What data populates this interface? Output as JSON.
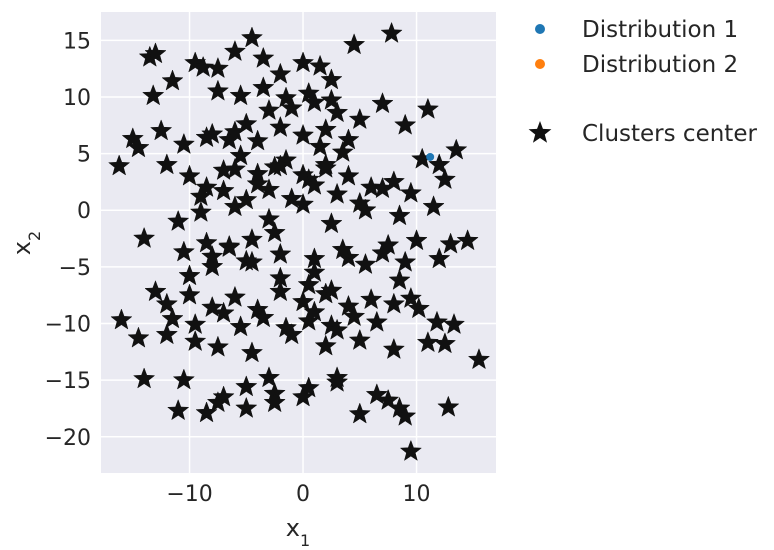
{
  "chart_data": {
    "type": "scatter",
    "title": "",
    "xlabel_base": "x",
    "xlabel_sub": "1",
    "ylabel_base": "x",
    "ylabel_sub": "2",
    "xlim": [
      -17.8,
      17.0
    ],
    "ylim": [
      -23.2,
      17.5
    ],
    "xticks": [
      -10,
      0,
      10
    ],
    "xtick_labels": [
      "−10",
      "0",
      "10"
    ],
    "yticks": [
      15,
      10,
      5,
      0,
      -5,
      -10,
      -15,
      -20
    ],
    "ytick_labels": [
      "15",
      "10",
      "5",
      "0",
      "−5",
      "−10",
      "−15",
      "−20"
    ],
    "grid": true,
    "legend_position": "outside-top-right",
    "colors": {
      "background": "#eaeaf2",
      "grid": "#ffffff",
      "distribution_1": "#1f77b4",
      "distribution_2": "#ff7f0e",
      "clusters_center": "#111111"
    },
    "series": [
      {
        "name": "Distribution 1",
        "marker": "circle",
        "x": [
          11.2
        ],
        "y": [
          4.7
        ]
      },
      {
        "name": "Distribution 2",
        "marker": "circle",
        "x": [],
        "y": []
      },
      {
        "name": "Clusters center",
        "marker": "star",
        "x": [
          -16.2,
          -13.5,
          -13.0,
          -13.2,
          -11.5,
          -9.5,
          -8.8,
          -7.5,
          -6.0,
          -4.5,
          -3.5,
          -2.0,
          0.0,
          1.5,
          2.5,
          4.5,
          7.8,
          11.0,
          13.5,
          12.0,
          -15.0,
          -14.5,
          -12.5,
          -10.5,
          -8.0,
          -6.5,
          -5.0,
          -3.0,
          -1.0,
          1.0,
          3.0,
          5.0,
          7.0,
          9.0,
          10.5,
          12.5,
          -12.0,
          -10.0,
          -8.5,
          -7.0,
          -5.5,
          -4.0,
          -2.5,
          -1.5,
          0.5,
          2.0,
          3.5,
          4.0,
          6.0,
          8.0,
          9.5,
          11.5,
          -14.0,
          -11.0,
          -9.0,
          -6.0,
          -3.0,
          0.0,
          2.5,
          5.5,
          8.5,
          10.0,
          13.0,
          14.5,
          -16.0,
          -13.0,
          -10.0,
          -8.0,
          -5.0,
          -2.0,
          1.0,
          4.0,
          7.0,
          9.0,
          12.0,
          15.5,
          -14.5,
          -12.0,
          -9.5,
          -7.5,
          -4.5,
          -1.0,
          2.0,
          5.0,
          8.0,
          11.0,
          12.5,
          -14.0,
          -10.5,
          -8.5,
          -7.0,
          -5.0,
          -2.5,
          0.5,
          3.0,
          6.5,
          8.5,
          9.0,
          12.8,
          -11.0,
          -7.5,
          -5.0,
          -2.5,
          0.0,
          3.0,
          5.0,
          7.5,
          9.5,
          -3.0,
          -12.0,
          -10.0,
          -8.0,
          -6.0,
          -4.0,
          -2.0,
          0.0,
          2.0,
          4.0,
          6.0,
          8.0,
          -11.5,
          -9.5,
          -7.0,
          -5.5,
          -3.5,
          -1.5,
          0.5,
          2.5,
          4.5,
          6.5,
          -10.5,
          -8.0,
          -6.5,
          -4.5,
          -2.0,
          1.0,
          3.5,
          5.5,
          7.5,
          -9.0,
          -7.0,
          -5.0,
          -3.0,
          -1.0,
          1.0,
          3.0,
          5.0,
          7.0,
          -8.5,
          -6.0,
          -4.0,
          -2.0,
          0.0,
          2.0,
          4.0,
          -7.5,
          -5.5,
          -3.5,
          -1.5,
          0.5,
          2.5,
          -6.0,
          -4.0,
          -2.0,
          0.0,
          2.0,
          1.5,
          0.5,
          2.5,
          1.0,
          3.0,
          -2.5,
          -4.5,
          -6.5,
          -8.5,
          8.5,
          9.5,
          10.2,
          11.8,
          13.3
        ],
        "y": [
          3.9,
          13.5,
          13.8,
          10.1,
          11.4,
          13.0,
          12.6,
          12.5,
          14.0,
          15.2,
          13.4,
          12.0,
          13.0,
          12.7,
          11.5,
          14.6,
          15.6,
          8.9,
          5.3,
          4.0,
          6.3,
          5.5,
          7.0,
          5.8,
          6.7,
          6.2,
          7.6,
          8.8,
          9.0,
          9.5,
          8.6,
          8.0,
          9.4,
          7.5,
          4.5,
          2.7,
          4.0,
          3.0,
          2.0,
          3.5,
          4.8,
          2.3,
          3.8,
          4.4,
          2.7,
          4.0,
          5.1,
          3.0,
          2.0,
          2.5,
          1.5,
          0.3,
          -2.5,
          -1.0,
          -0.2,
          0.3,
          -0.8,
          0.5,
          -1.2,
          0.0,
          -0.5,
          -2.7,
          -3.0,
          -2.7,
          -9.7,
          -7.2,
          -5.8,
          -5.0,
          -4.5,
          -6.0,
          -5.5,
          -4.2,
          -3.8,
          -4.6,
          -4.3,
          -13.2,
          -11.3,
          -11.0,
          -11.6,
          -12.1,
          -12.6,
          -11.0,
          -12.0,
          -11.5,
          -12.3,
          -11.7,
          -11.8,
          -14.9,
          -15.0,
          -17.9,
          -16.5,
          -15.6,
          -16.2,
          -15.7,
          -14.8,
          -16.3,
          -17.5,
          -18.2,
          -17.4,
          -17.7,
          -17.0,
          -17.5,
          -17.0,
          -16.5,
          -15.2,
          -18.0,
          -16.8,
          -21.3,
          -14.8,
          -8.3,
          -7.5,
          -8.6,
          -7.7,
          -8.8,
          -7.2,
          -8.1,
          -7.4,
          -8.5,
          -7.9,
          -8.3,
          -9.6,
          -10.1,
          -9.1,
          -10.3,
          -9.5,
          -10.4,
          -9.8,
          -10.2,
          -9.4,
          -9.9,
          -3.7,
          -4.1,
          -3.2,
          -4.6,
          -3.9,
          -4.3,
          -3.5,
          -4.8,
          -3.1,
          1.2,
          1.7,
          0.9,
          1.8,
          1.0,
          2.2,
          1.4,
          0.6,
          1.9,
          6.4,
          6.9,
          6.1,
          7.3,
          6.6,
          7.1,
          6.2,
          10.5,
          10.1,
          10.8,
          9.9,
          10.3,
          9.7,
          3.6,
          3.2,
          3.9,
          3.1,
          3.7,
          5.6,
          -6.6,
          -7.1,
          -9.0,
          -10.6,
          -2.0,
          -2.6,
          -3.3,
          -2.9,
          -6.2,
          -7.8,
          -8.7,
          -9.9,
          -10.1
        ]
      }
    ]
  },
  "legend": {
    "items": [
      {
        "label": "Distribution 1",
        "marker": "circle",
        "color": "#1f77b4"
      },
      {
        "label": "Distribution 2",
        "marker": "circle",
        "color": "#ff7f0e"
      },
      {
        "label": "Clusters center",
        "marker": "star",
        "color": "#111111"
      }
    ]
  }
}
